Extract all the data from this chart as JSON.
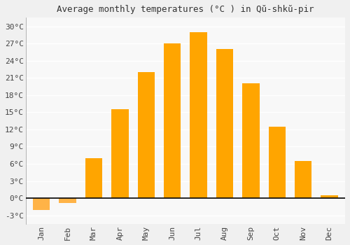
{
  "title": "Average monthly temperatures (°C ) in Qŭ-shkŭ-pir",
  "months": [
    "Jan",
    "Feb",
    "Mar",
    "Apr",
    "May",
    "Jun",
    "Jul",
    "Aug",
    "Sep",
    "Oct",
    "Nov",
    "Dec"
  ],
  "values": [
    -2.0,
    -0.8,
    7.0,
    15.5,
    22.0,
    27.0,
    29.0,
    26.0,
    20.0,
    12.5,
    6.5,
    0.5
  ],
  "bar_color": "#FFA500",
  "bar_color_neg": "#FFB347",
  "ylim": [
    -4.5,
    31.5
  ],
  "yticks": [
    -3,
    0,
    3,
    6,
    9,
    12,
    15,
    18,
    21,
    24,
    27,
    30
  ],
  "background_color": "#f0f0f0",
  "plot_bg_color": "#f8f8f8",
  "grid_color": "#ffffff",
  "title_fontsize": 9,
  "tick_fontsize": 8,
  "bar_width": 0.65
}
